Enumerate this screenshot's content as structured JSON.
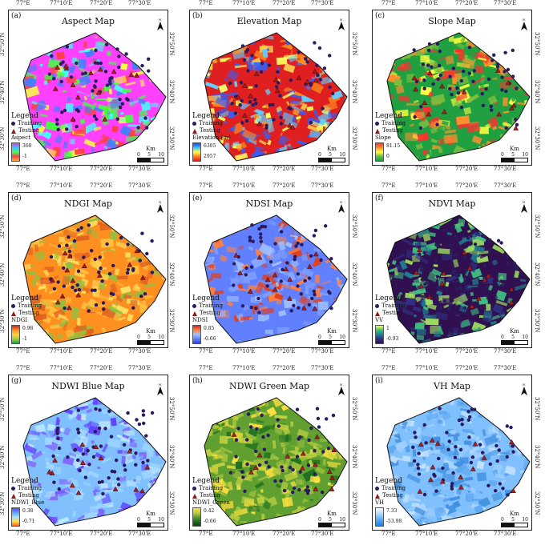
{
  "axis_ticks": {
    "top": [
      "77°E",
      "77°10'E",
      "77°20'E",
      "77°30'E"
    ],
    "side": [
      "32°50'N",
      "32°40'N",
      "32°30'N"
    ]
  },
  "legend": {
    "heading": "Legend",
    "training": "Training",
    "testing": "Testing"
  },
  "scale": {
    "unit": "Km",
    "ticks": [
      "0",
      "5",
      "10"
    ]
  },
  "colors": {
    "training_dot": "#2a1a5e",
    "testing_triangle": "#8b1a1a"
  },
  "panels": [
    {
      "id": "a",
      "label": "(a)",
      "title": "Aspect Map",
      "var": "Aspect",
      "max": "360",
      "min": "-1",
      "ramp": [
        "#e040e0",
        "#40c0ff",
        "#40ff60",
        "#ff4040",
        "#ffb040"
      ],
      "texture": "aspect"
    },
    {
      "id": "b",
      "label": "(b)",
      "title": "Elevation Map",
      "var": "Elevation (m)",
      "max": "6305",
      "min": "2957",
      "ramp": [
        "#2040ff",
        "#40c0ff",
        "#ffff40",
        "#ff8020",
        "#e02020"
      ],
      "texture": "elevation"
    },
    {
      "id": "c",
      "label": "(c)",
      "title": "Slope Map",
      "var": "Slope",
      "max": "81.15",
      "min": "0",
      "ramp": [
        "#ff3030",
        "#ff9030",
        "#ffff40",
        "#60c040",
        "#10a040"
      ],
      "texture": "slope"
    },
    {
      "id": "d",
      "label": "(d)",
      "title": "NDGI Map",
      "var": "NDGI",
      "max": "0.98",
      "min": "-1",
      "ramp": [
        "#e02020",
        "#ff9020",
        "#ffd040",
        "#a0d040",
        "#20a040"
      ],
      "texture": "ndgi"
    },
    {
      "id": "e",
      "label": "(e)",
      "title": "NDSI Map",
      "var": "NDSI",
      "max": "0.85",
      "min": "-0.66",
      "ramp": [
        "#e02020",
        "#ff8040",
        "#a0c0ff",
        "#6080ff",
        "#3040e0"
      ],
      "texture": "ndsi"
    },
    {
      "id": "f",
      "label": "(f)",
      "title": "NDVI Map",
      "var": "VV",
      "max": "1",
      "min": "-0.93",
      "ramp": [
        "#ffff40",
        "#40c080",
        "#208090",
        "#303080",
        "#301050"
      ],
      "texture": "ndvi"
    },
    {
      "id": "g",
      "label": "(g)",
      "title": "NDWI Blue Map",
      "var": "NDWI_Blue",
      "max": "0.38",
      "min": "-0.71",
      "ramp": [
        "#6040ff",
        "#60a0ff",
        "#a0e0ff",
        "#ffe040",
        "#ff6020"
      ],
      "texture": "ndwib"
    },
    {
      "id": "h",
      "label": "(h)",
      "title": "NDWI Green Map",
      "var": "NDWI_Green",
      "max": "0.42",
      "min": "-0.66",
      "ramp": [
        "#ffe040",
        "#c0d040",
        "#60a030",
        "#207020",
        "#104010"
      ],
      "texture": "ndwig"
    },
    {
      "id": "i",
      "label": "(i)",
      "title": "VH Map",
      "var": "VH",
      "max": "7.33",
      "min": "-53.98",
      "ramp": [
        "#ffffff",
        "#c0e0ff",
        "#80c0ff",
        "#40a0f0",
        "#2080e0"
      ],
      "texture": "vh"
    }
  ]
}
